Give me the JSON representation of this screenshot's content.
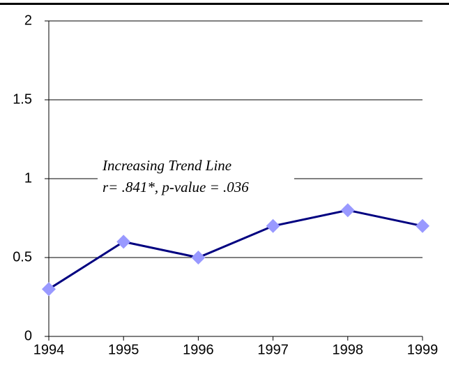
{
  "chart_data": {
    "type": "line",
    "x": [
      1994,
      1995,
      1996,
      1997,
      1998,
      1999
    ],
    "series": [
      {
        "color": "#000080",
        "marker_color": "#9999ff",
        "values": [
          0.3,
          0.6,
          0.5,
          0.7,
          0.8,
          0.7
        ]
      }
    ],
    "xlim": [
      1994,
      1999
    ],
    "xticks": [
      1994,
      1995,
      1996,
      1997,
      1998,
      1999
    ],
    "ylim": [
      0,
      2
    ],
    "yticks": [
      0,
      0.5,
      1,
      1.5,
      2
    ],
    "grid": true,
    "annotations": [
      "Increasing Trend Line",
      "r= .841*, p-value = .036"
    ]
  }
}
